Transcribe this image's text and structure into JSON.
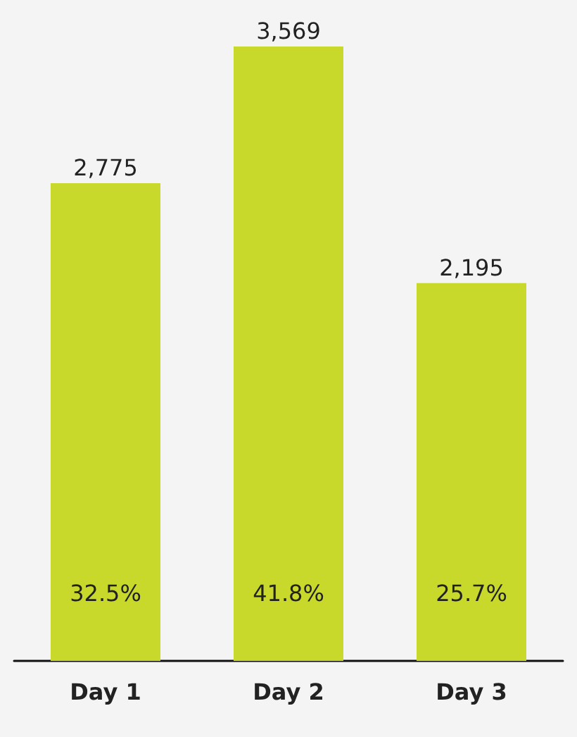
{
  "chart_data": {
    "type": "bar",
    "categories": [
      "Day 1",
      "Day 2",
      "Day 3"
    ],
    "values": [
      2775,
      3569,
      2195
    ],
    "color": "#c8d92b",
    "value_labels": [
      "2,775",
      "3,569",
      "2,195"
    ],
    "annotations": [
      "32.5%",
      "41.8%",
      "25.7%"
    ]
  }
}
